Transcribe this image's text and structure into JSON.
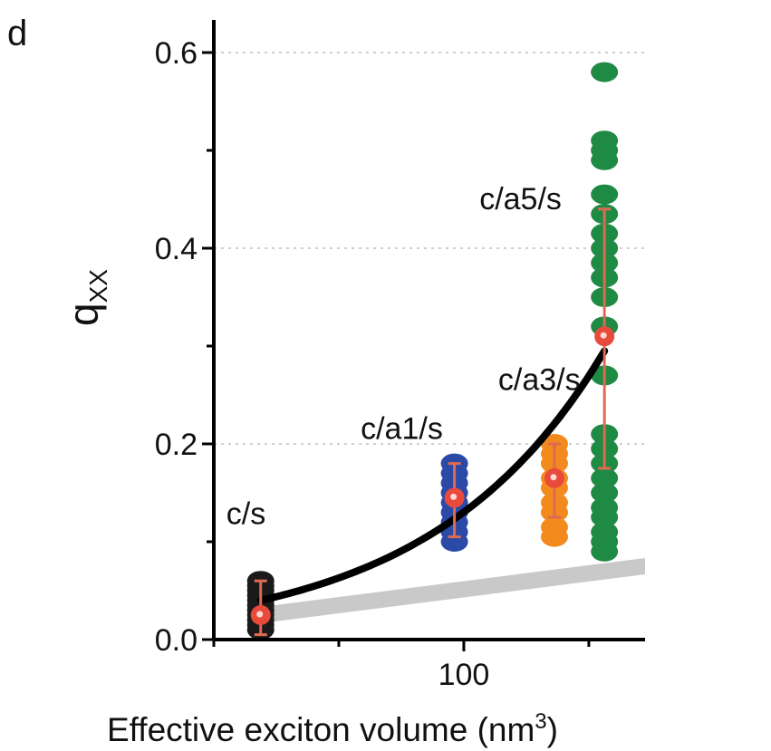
{
  "chart_data": {
    "type": "scatter",
    "panel_label": "d",
    "xlabel": "Effective exciton volume (nm",
    "xlabel_sup": "3",
    "xlabel_close": ")",
    "ylabel": "q",
    "ylabel_sub": "XX",
    "xlim": [
      20,
      158
    ],
    "ylim": [
      0.0,
      0.6
    ],
    "x_ticks": [
      {
        "value": 100,
        "label": "100"
      }
    ],
    "x_minor_ticks": [
      20,
      60,
      140
    ],
    "y_ticks": [
      {
        "value": 0.0,
        "label": "0.0"
      },
      {
        "value": 0.2,
        "label": "0.2"
      },
      {
        "value": 0.4,
        "label": "0.4"
      },
      {
        "value": 0.6,
        "label": "0.6"
      }
    ],
    "y_minor_ticks": [
      0.1,
      0.3,
      0.5
    ],
    "grid": {
      "horizontal": true,
      "style": "dotted",
      "values": [
        0.2,
        0.4,
        0.6
      ]
    },
    "series": [
      {
        "color": "#1a1a1a",
        "x": 35,
        "values": [
          0.01,
          0.015,
          0.02,
          0.025,
          0.03,
          0.035,
          0.04,
          0.045,
          0.05,
          0.055,
          0.06
        ],
        "mean": 0.025,
        "err_low": 0.005,
        "err_high": 0.06
      },
      {
        "color": "#2b4aa8",
        "x": 97,
        "values": [
          0.1,
          0.11,
          0.12,
          0.13,
          0.14,
          0.15,
          0.16,
          0.17,
          0.18
        ],
        "mean": 0.145,
        "err_low": 0.105,
        "err_high": 0.18
      },
      {
        "color": "#f28a1e",
        "x": 129,
        "values": [
          0.105,
          0.115,
          0.13,
          0.14,
          0.155,
          0.165,
          0.18,
          0.19,
          0.2
        ],
        "mean": 0.165,
        "err_low": 0.125,
        "err_high": 0.2
      },
      {
        "color": "#1f8a44",
        "x": 145,
        "values": [
          0.09,
          0.1,
          0.11,
          0.125,
          0.135,
          0.15,
          0.165,
          0.18,
          0.195,
          0.21,
          0.27,
          0.32,
          0.35,
          0.37,
          0.385,
          0.4,
          0.415,
          0.435,
          0.455,
          0.49,
          0.5,
          0.51,
          0.58
        ],
        "mean": 0.31,
        "err_low": 0.175,
        "err_high": 0.44
      }
    ],
    "fit_curve": {
      "color": "#000000",
      "x_start": 35,
      "x_end": 145,
      "y_start": 0.04,
      "y_end": 0.295,
      "shape": "exponential"
    },
    "shaded_band": {
      "color": "#c9c9c9",
      "x_start": 35,
      "x_end": 158,
      "y_start": 0.025,
      "y_end": 0.075
    },
    "annotations": [
      {
        "text": "c/s",
        "x": 24,
        "y": 0.118
      },
      {
        "text": "c/a1/s",
        "x": 67,
        "y": 0.205
      },
      {
        "text": "c/a3/s",
        "x": 111,
        "y": 0.255
      },
      {
        "text": "c/a5/s",
        "x": 105,
        "y": 0.44
      }
    ],
    "mean_marker_color": "#e84a3c",
    "errorbar_color": "#e06a50"
  }
}
